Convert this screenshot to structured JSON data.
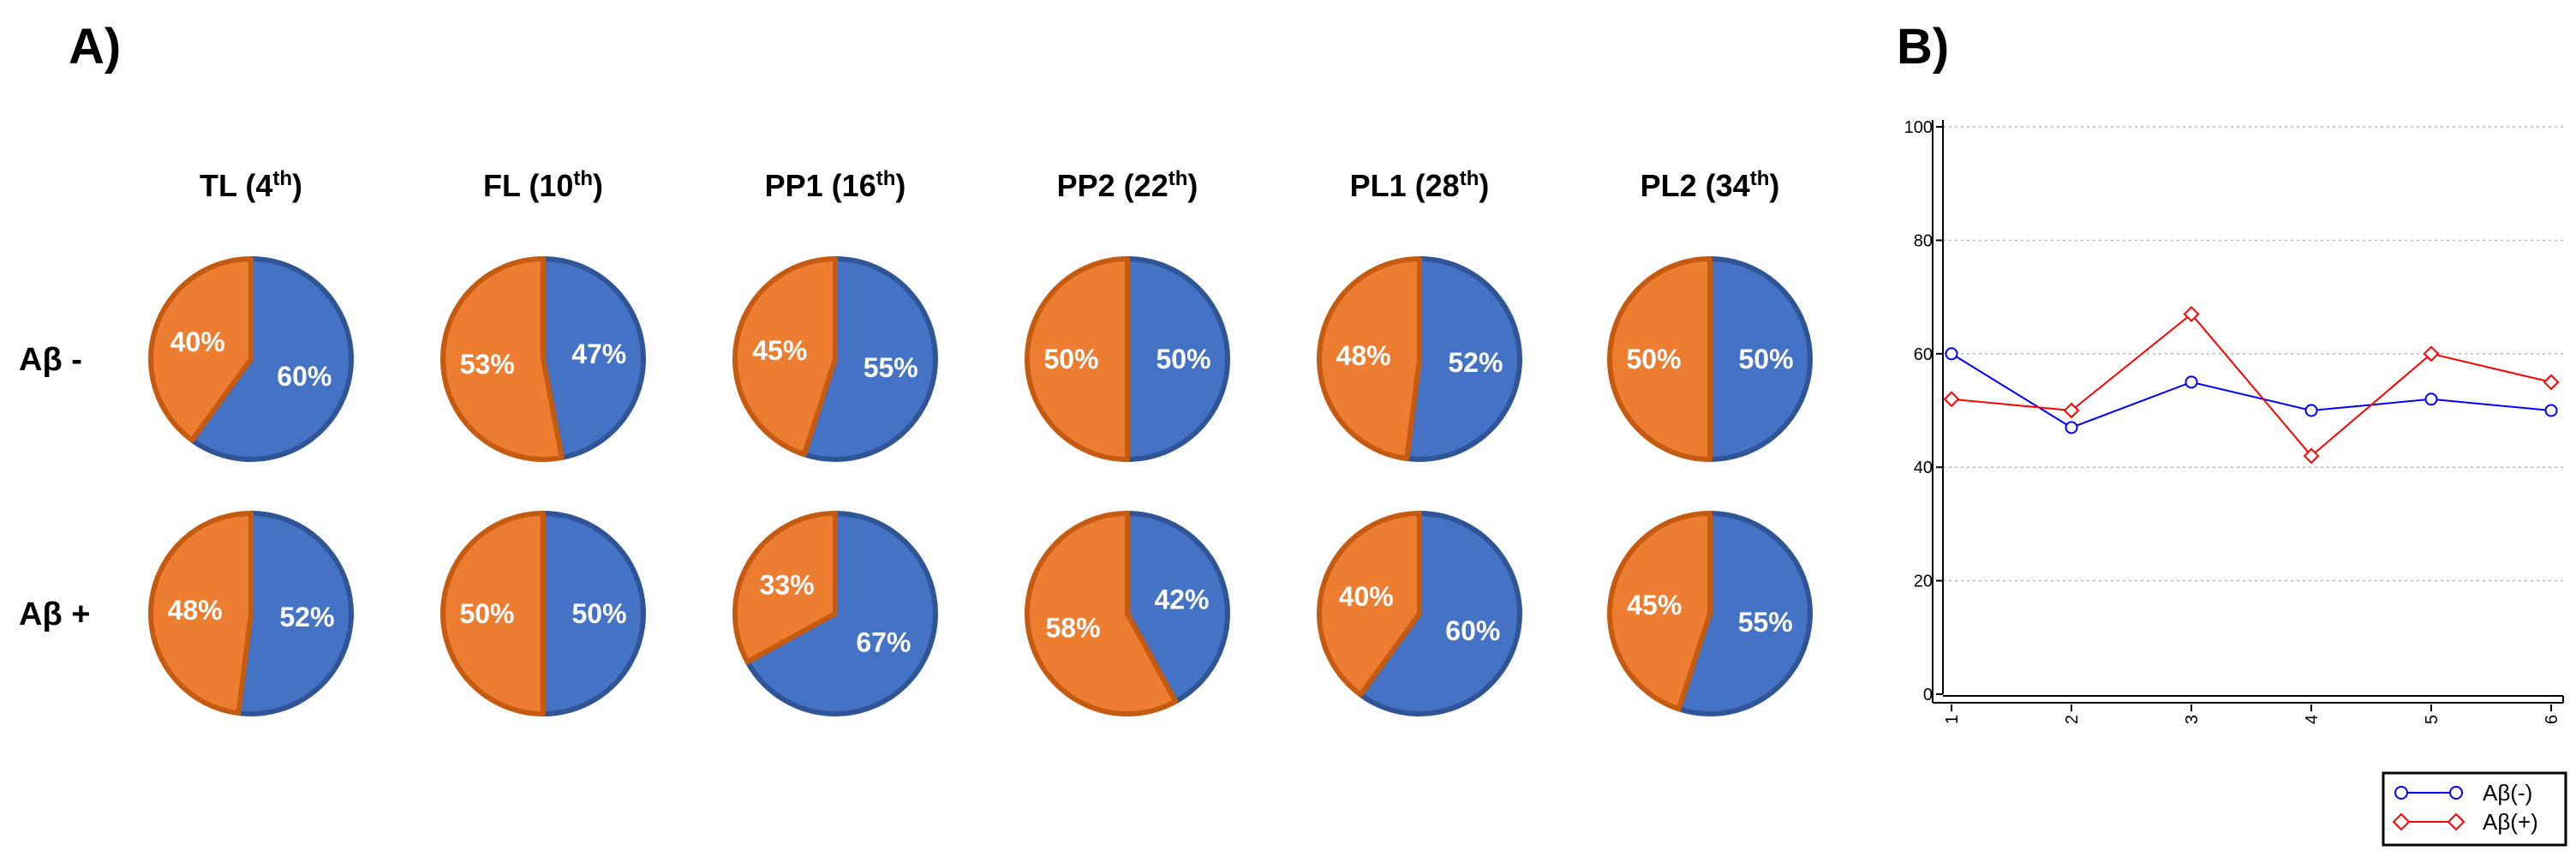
{
  "panels": {
    "a_label": "A)",
    "b_label": "B)"
  },
  "colors": {
    "negative_slice": "#4472C4",
    "negative_slice_edge": "#2F5597",
    "positive_slice": "#ED7D31",
    "positive_slice_edge": "#C55A11",
    "series_neg": "#0000FF",
    "series_pos": "#FF0000",
    "grid": "#BBBBBB"
  },
  "chart_data": [
    {
      "type": "pie",
      "columns": [
        {
          "label": "TL (",
          "sup": "th",
          "num": "4"
        },
        {
          "label": "FL (",
          "sup": "th",
          "num": "10"
        },
        {
          "label": "PP1 (",
          "sup": "th",
          "num": "16"
        },
        {
          "label": "PP2 (",
          "sup": "th",
          "num": "22"
        },
        {
          "label": "PL1 (",
          "sup": "th",
          "num": "28"
        },
        {
          "label": "PL2 (",
          "sup": "th",
          "num": "34"
        }
      ],
      "rows": [
        {
          "label": "Aβ -",
          "slices": [
            {
              "blue": 60,
              "orange": 40
            },
            {
              "blue": 47,
              "orange": 53
            },
            {
              "blue": 55,
              "orange": 45
            },
            {
              "blue": 50,
              "orange": 50
            },
            {
              "blue": 52,
              "orange": 48
            },
            {
              "blue": 50,
              "orange": 50
            }
          ]
        },
        {
          "label": "Aβ +",
          "slices": [
            {
              "blue": 52,
              "orange": 48
            },
            {
              "blue": 50,
              "orange": 50
            },
            {
              "blue": 67,
              "orange": 33
            },
            {
              "blue": 42,
              "orange": 58
            },
            {
              "blue": 60,
              "orange": 40
            },
            {
              "blue": 55,
              "orange": 45
            }
          ]
        }
      ]
    },
    {
      "type": "line",
      "x": [
        1,
        2,
        3,
        4,
        5,
        6
      ],
      "x_tick_labels": [
        "1",
        "2",
        "3",
        "4",
        "5",
        "6"
      ],
      "y_ticks": [
        0,
        20,
        40,
        60,
        80,
        100
      ],
      "ylim": [
        0,
        100
      ],
      "grid": "horizontal dotted",
      "legend_placement": "bottom-right, outside",
      "series": [
        {
          "name": "Aβ(-)",
          "values": [
            60,
            47,
            55,
            50,
            52,
            50
          ],
          "marker": "circle"
        },
        {
          "name": "Aβ(+)",
          "values": [
            52,
            50,
            67,
            42,
            60,
            55
          ],
          "marker": "diamond"
        }
      ]
    }
  ]
}
